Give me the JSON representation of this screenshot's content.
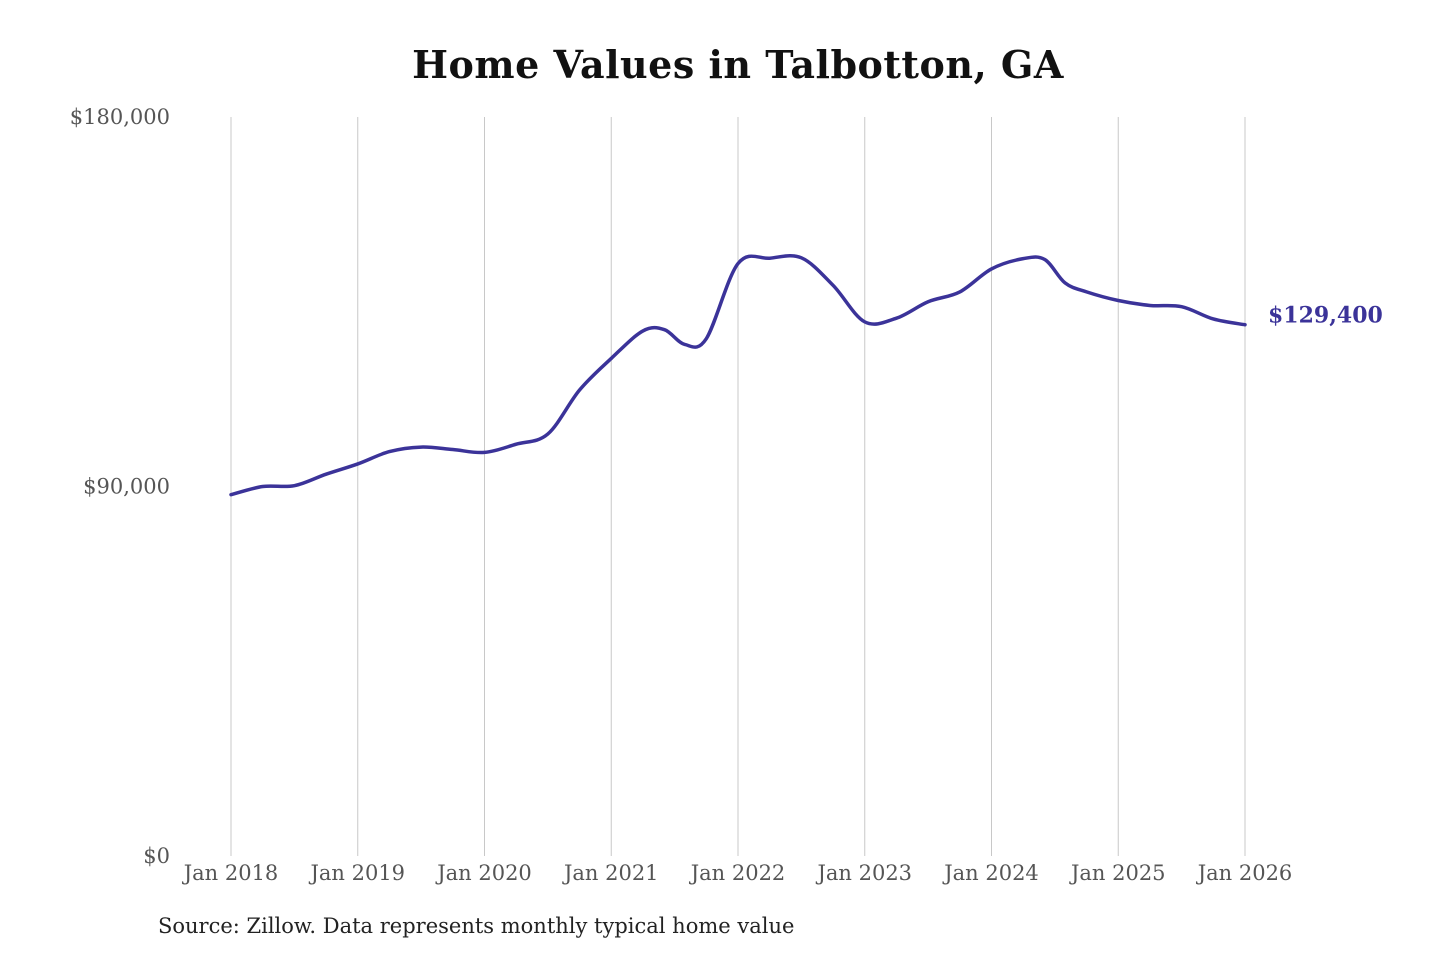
{
  "chart_data": {
    "type": "line",
    "title": "Home Values in Talbotton, GA",
    "source": "Source: Zillow. Data represents monthly typical home value",
    "xlabel": "",
    "ylabel": "",
    "ylim": [
      0,
      180000
    ],
    "y_ticks": [
      {
        "value": 180000,
        "label": "$180,000"
      },
      {
        "value": 90000,
        "label": "$90,000"
      },
      {
        "value": 0,
        "label": "$0"
      }
    ],
    "x_ticks": [
      {
        "value": 2018,
        "label": "Jan 2018"
      },
      {
        "value": 2019,
        "label": "Jan 2019"
      },
      {
        "value": 2020,
        "label": "Jan 2020"
      },
      {
        "value": 2021,
        "label": "Jan 2021"
      },
      {
        "value": 2022,
        "label": "Jan 2022"
      },
      {
        "value": 2023,
        "label": "Jan 2023"
      },
      {
        "value": 2024,
        "label": "Jan 2024"
      },
      {
        "value": 2025,
        "label": "Jan 2025"
      },
      {
        "value": 2026,
        "label": "Jan 2026"
      }
    ],
    "grid": {
      "vertical": true,
      "horizontal": false
    },
    "line_color": "#3b3399",
    "grid_color": "#c8c8c8",
    "end_label": "$129,400",
    "series": [
      {
        "x": [
          2018.0,
          2018.25,
          2018.5,
          2018.75,
          2019.0,
          2019.25,
          2019.5,
          2019.75,
          2020.0,
          2020.25,
          2020.5,
          2020.75,
          2021.0,
          2021.25,
          2021.42,
          2021.58,
          2021.75,
          2022.0,
          2022.25,
          2022.5,
          2022.75,
          2023.0,
          2023.25,
          2023.5,
          2023.75,
          2024.0,
          2024.25,
          2024.42,
          2024.58,
          2024.75,
          2025.0,
          2025.25,
          2025.5,
          2025.75,
          2026.0
        ],
        "y": [
          88000,
          90000,
          90200,
          93000,
          95500,
          98500,
          99600,
          99000,
          98300,
          100300,
          102800,
          113500,
          121200,
          127900,
          128200,
          124600,
          126000,
          144300,
          145600,
          145700,
          139000,
          130100,
          131000,
          135000,
          137400,
          143000,
          145500,
          145300,
          139600,
          137400,
          135300,
          134100,
          133800,
          130800,
          129400
        ]
      }
    ]
  }
}
